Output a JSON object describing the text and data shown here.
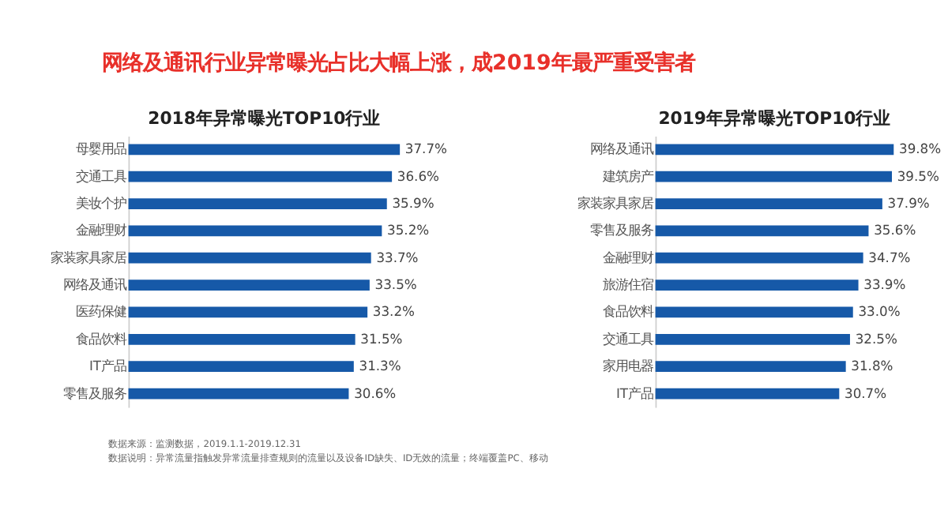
{
  "chart_data": [
    {
      "type": "bar",
      "orientation": "horizontal",
      "title": "2018年异常曝光TOP10行业",
      "categories": [
        "母婴用品",
        "交通工具",
        "美妆个护",
        "金融理财",
        "家装家具家居",
        "网络及通讯",
        "医药保健",
        "食品饮料",
        "IT产品",
        "零售及服务"
      ],
      "values": [
        37.7,
        36.6,
        35.9,
        35.2,
        33.7,
        33.5,
        33.2,
        31.5,
        31.3,
        30.6
      ],
      "value_labels": [
        "37.7%",
        "36.6%",
        "35.9%",
        "35.2%",
        "33.7%",
        "33.5%",
        "33.2%",
        "31.5%",
        "31.3%",
        "30.6%"
      ],
      "color": "#1659a8",
      "grid": false,
      "annotations": [
        "网络及通讯行业异常曝光占比大幅上涨，成2019年最严重受害者",
        "数据来源：监测数据，2019.1.1-2019.12.31",
        "数据说明：异常流量指触发异常流量排查规则的流量以及设备ID缺失、ID无效的流量；终端覆盖PC、移动"
      ]
    },
    {
      "type": "bar",
      "orientation": "horizontal",
      "title": "2019年异常曝光TOP10行业",
      "categories": [
        "网络及通讯",
        "建筑房产",
        "家装家具家居",
        "零售及服务",
        "金融理财",
        "旅游住宿",
        "食品饮料",
        "交通工具",
        "家用电器",
        "IT产品"
      ],
      "values": [
        39.8,
        39.5,
        37.9,
        35.6,
        34.7,
        33.9,
        33.0,
        32.5,
        31.8,
        30.7
      ],
      "value_labels": [
        "39.8%",
        "39.5%",
        "37.9%",
        "35.6%",
        "34.7%",
        "33.9%",
        "33.0%",
        "32.5%",
        "31.8%",
        "30.7%"
      ],
      "color": "#1659a8",
      "grid": false
    }
  ]
}
